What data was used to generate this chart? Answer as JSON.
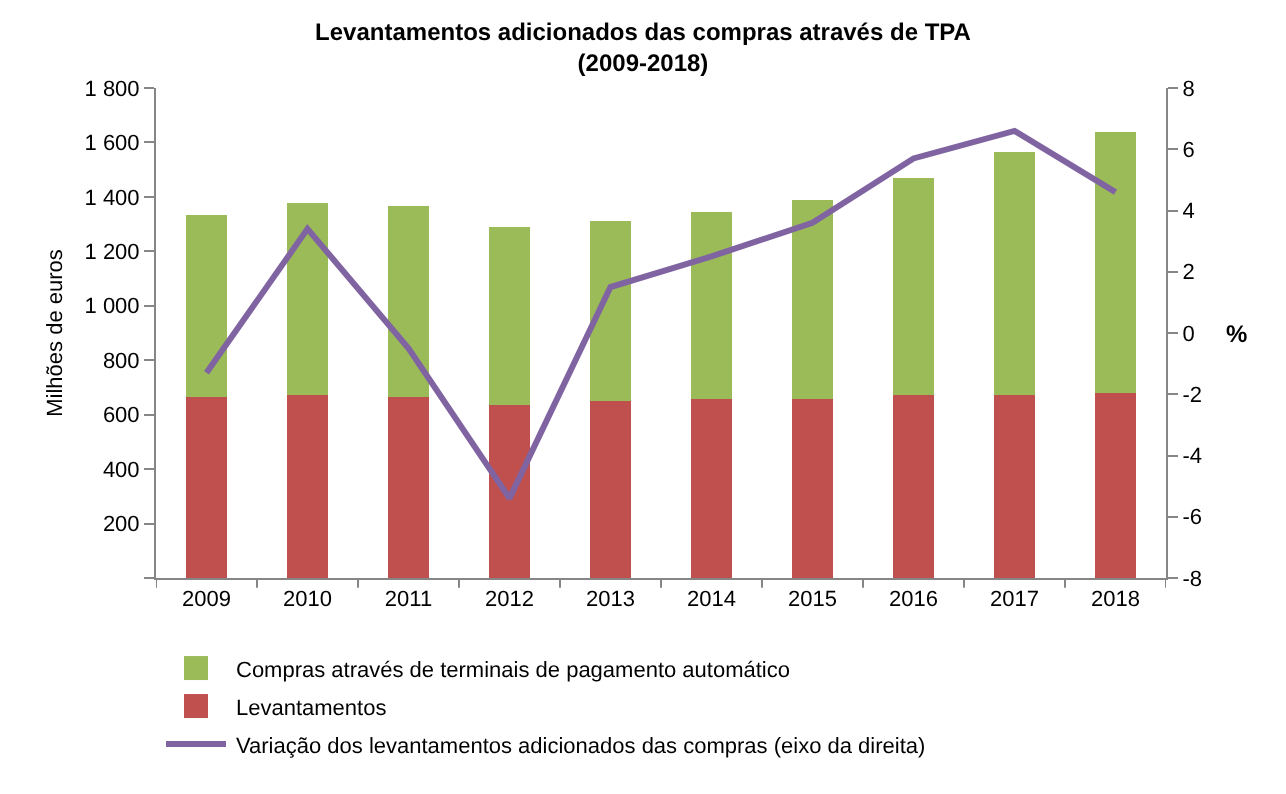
{
  "chart_data": {
    "type": "bar",
    "title": "Levantamentos adicionados das compras através de TPA",
    "subtitle": "(2009-2018)",
    "ylabel": "Milhões de euros",
    "y2label": "%",
    "categories": [
      "2009",
      "2010",
      "2011",
      "2012",
      "2013",
      "2014",
      "2015",
      "2016",
      "2017",
      "2018"
    ],
    "stacked": true,
    "series": [
      {
        "name": "Levantamentos",
        "color": "#c0504d",
        "values": [
          666,
          673,
          666,
          637,
          651,
          658,
          658,
          673,
          673,
          680
        ]
      },
      {
        "name": "Compras através de terminais de pagamento automático",
        "color": "#9bbb59",
        "values": [
          666,
          703,
          702,
          651,
          659,
          688,
          732,
          798,
          893,
          959
        ]
      },
      {
        "name": "Variação dos levantamentos adicionados das compras (eixo da direita)",
        "type": "line",
        "axis": "y2",
        "color": "#8064a2",
        "values": [
          -1.3,
          3.4,
          -0.5,
          -5.4,
          1.5,
          2.5,
          3.6,
          5.7,
          6.6,
          4.6
        ]
      }
    ],
    "ylim": [
      0,
      1800
    ],
    "yticks": [
      {
        "value": 0,
        "label": null
      },
      200,
      400,
      600,
      800,
      {
        "value": 1000,
        "label": "1 000"
      },
      {
        "value": 1200,
        "label": "1 200"
      },
      {
        "value": 1400,
        "label": "1 400"
      },
      {
        "value": 1600,
        "label": "1 600"
      },
      {
        "value": 1800,
        "label": "1 800"
      }
    ],
    "y2lim": [
      -8,
      8
    ],
    "y2ticks": [
      -8,
      -6,
      -4,
      -2,
      0,
      2,
      4,
      6,
      8
    ],
    "grid": false,
    "legend": "bottom",
    "marker": "none",
    "line_style": "solid"
  }
}
